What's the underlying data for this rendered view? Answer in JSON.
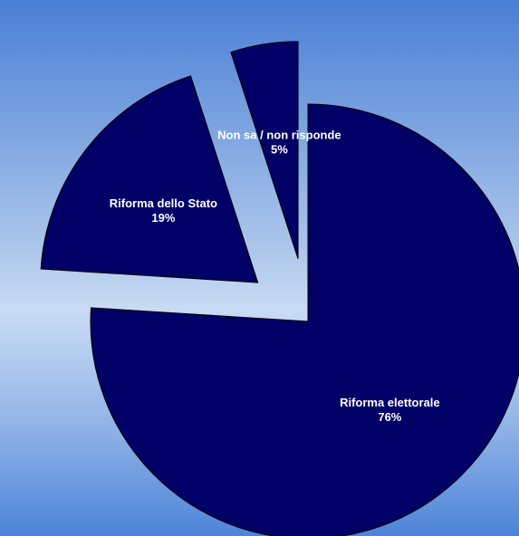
{
  "chart_data": {
    "type": "pie",
    "slices": [
      {
        "label": "Riforma elettorale",
        "value": 76,
        "value_label": "76%",
        "exploded": false
      },
      {
        "label": "Riforma dello Stato",
        "value": 19,
        "value_label": "19%",
        "exploded": true
      },
      {
        "label": "Non sa / non risponde",
        "value": 5,
        "value_label": "5%",
        "exploded": true
      }
    ],
    "colors": {
      "slice_fill": "#000066",
      "slice_stroke": "#000000",
      "label_text": "#ffffff",
      "background_top": "#4a7fd6",
      "background_mid": "#c9dbf4",
      "background_bottom": "#4d84d8"
    },
    "title": "",
    "legend": "none"
  }
}
